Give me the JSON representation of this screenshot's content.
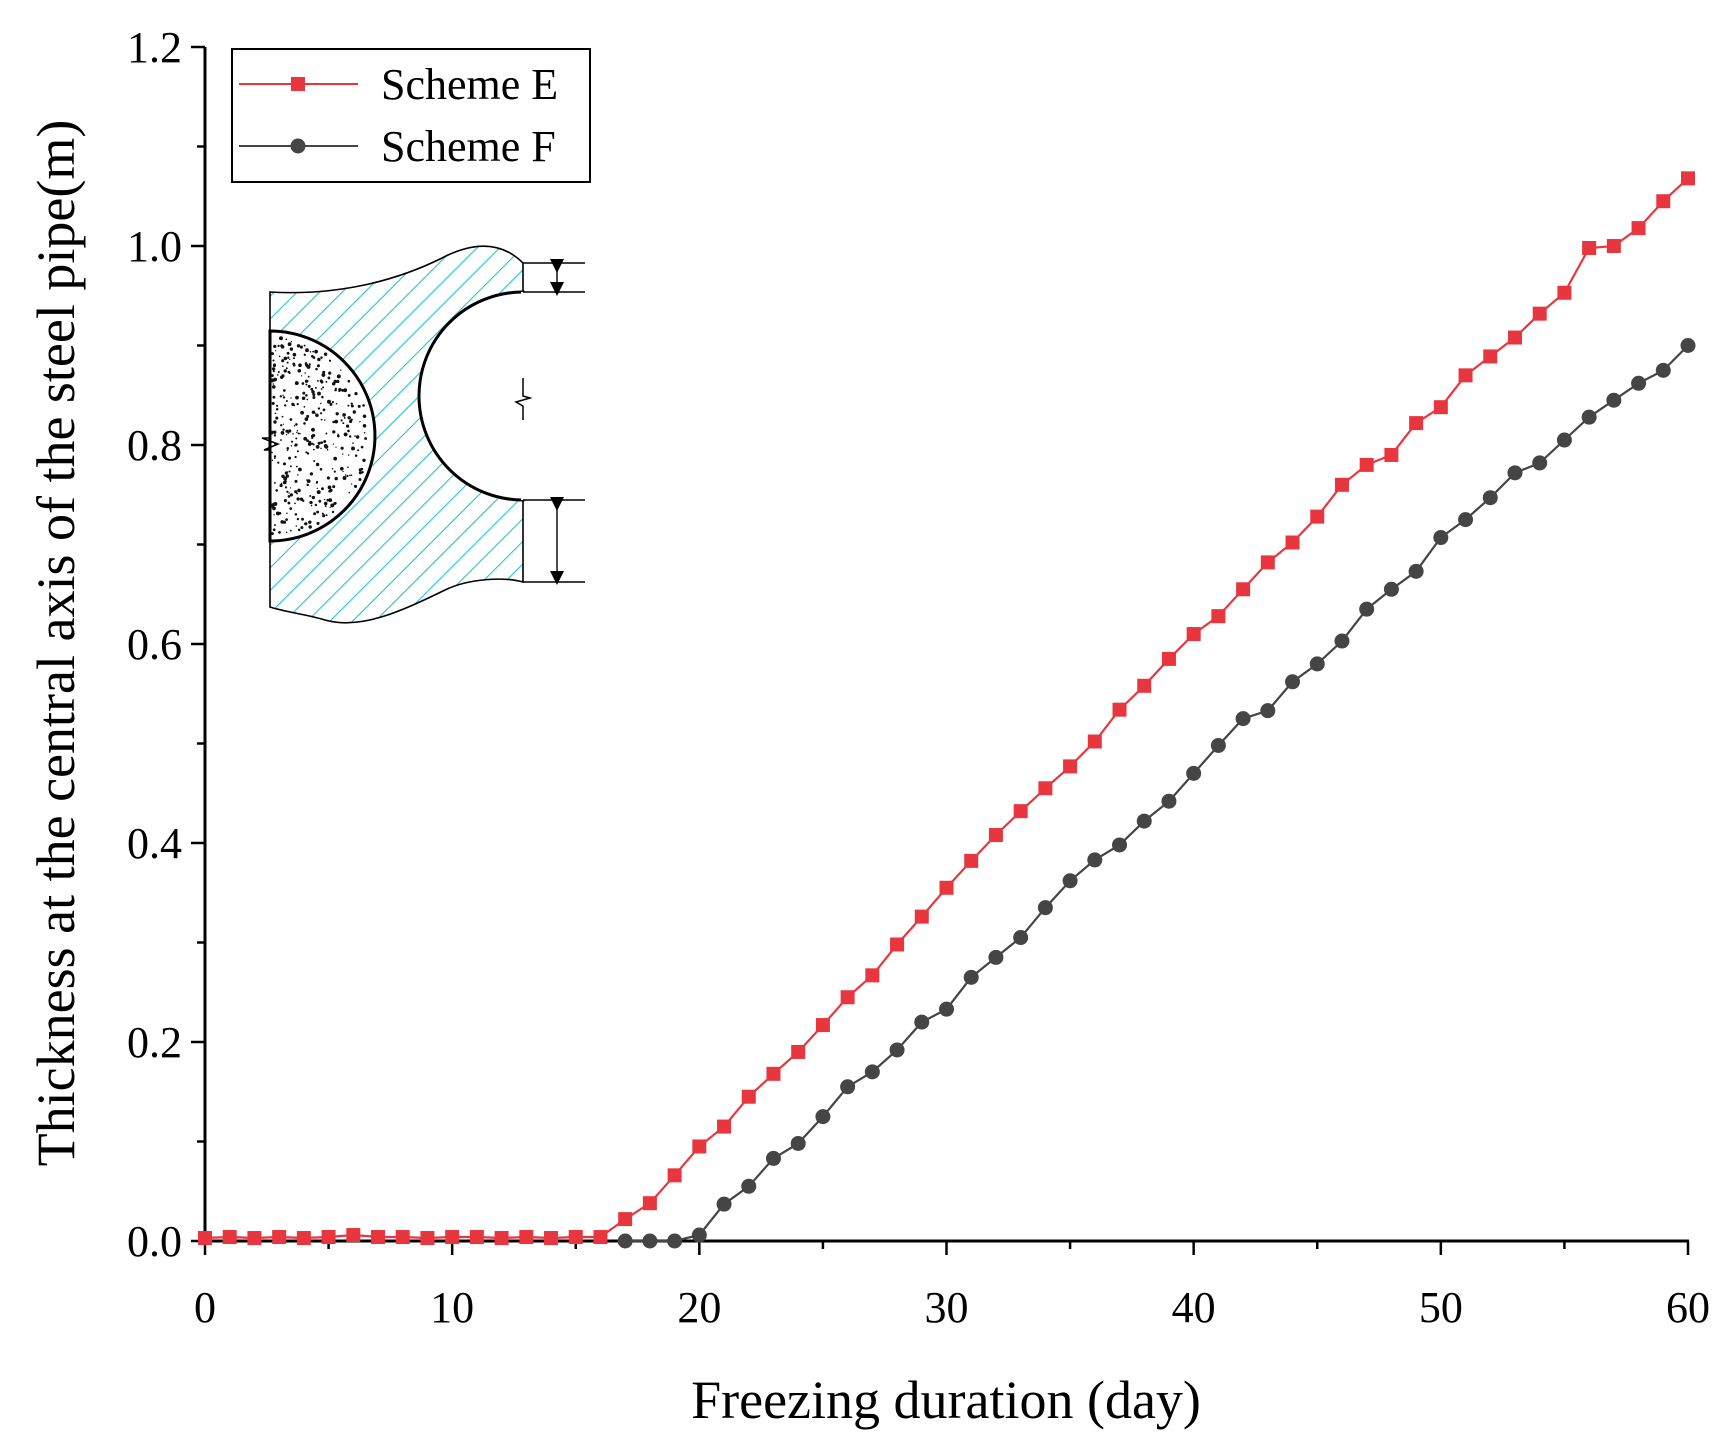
{
  "chart_data": {
    "type": "line",
    "xlabel": "Freezing duration (day)",
    "ylabel": "Thickness at the central axis of the steel pipe(m)",
    "xlim": [
      0,
      60
    ],
    "ylim": [
      0,
      1.2
    ],
    "xticks": [
      "0",
      "10",
      "20",
      "30",
      "40",
      "50",
      "60"
    ],
    "yticks": [
      "0.0",
      "0.2",
      "0.4",
      "0.6",
      "0.8",
      "1.0",
      "1.2"
    ],
    "legend_position": "top-left",
    "grid": false,
    "has_inset_diagram": true,
    "series": [
      {
        "name": "Scheme E",
        "color": "#e8363f",
        "marker": "square",
        "x": [
          0,
          1,
          2,
          3,
          4,
          5,
          6,
          7,
          8,
          9,
          10,
          11,
          12,
          13,
          14,
          15,
          16,
          17,
          18,
          19,
          20,
          21,
          22,
          23,
          24,
          25,
          26,
          27,
          28,
          29,
          30,
          31,
          32,
          33,
          34,
          35,
          36,
          37,
          38,
          39,
          40,
          41,
          42,
          43,
          44,
          45,
          46,
          47,
          48,
          49,
          50,
          51,
          52,
          53,
          54,
          55,
          56,
          57,
          58,
          59,
          60
        ],
        "y": [
          0.003,
          0.004,
          0.003,
          0.004,
          0.003,
          0.004,
          0.006,
          0.004,
          0.004,
          0.003,
          0.004,
          0.004,
          0.003,
          0.004,
          0.003,
          0.004,
          0.004,
          0.022,
          0.038,
          0.066,
          0.095,
          0.115,
          0.145,
          0.168,
          0.19,
          0.217,
          0.245,
          0.267,
          0.298,
          0.326,
          0.355,
          0.382,
          0.408,
          0.432,
          0.455,
          0.477,
          0.502,
          0.534,
          0.558,
          0.585,
          0.61,
          0.628,
          0.655,
          0.682,
          0.702,
          0.728,
          0.76,
          0.78,
          0.79,
          0.822,
          0.838,
          0.87,
          0.889,
          0.908,
          0.932,
          0.953,
          0.998,
          1.0,
          1.018,
          1.045,
          1.068
        ]
      },
      {
        "name": "Scheme F",
        "color": "#454545",
        "marker": "circle",
        "x": [
          17,
          18,
          19,
          20,
          21,
          22,
          23,
          24,
          25,
          26,
          27,
          28,
          29,
          30,
          31,
          32,
          33,
          34,
          35,
          36,
          37,
          38,
          39,
          40,
          41,
          42,
          43,
          44,
          45,
          46,
          47,
          48,
          49,
          50,
          51,
          52,
          53,
          54,
          55,
          56,
          57,
          58,
          59,
          60
        ],
        "y": [
          0.0,
          0.0,
          0.0,
          0.006,
          0.037,
          0.055,
          0.083,
          0.098,
          0.125,
          0.155,
          0.17,
          0.192,
          0.22,
          0.233,
          0.265,
          0.285,
          0.305,
          0.335,
          0.362,
          0.383,
          0.398,
          0.422,
          0.442,
          0.47,
          0.498,
          0.525,
          0.533,
          0.562,
          0.58,
          0.603,
          0.635,
          0.655,
          0.673,
          0.707,
          0.725,
          0.747,
          0.772,
          0.782,
          0.805,
          0.828,
          0.845,
          0.862,
          0.875,
          0.9
        ]
      }
    ]
  }
}
